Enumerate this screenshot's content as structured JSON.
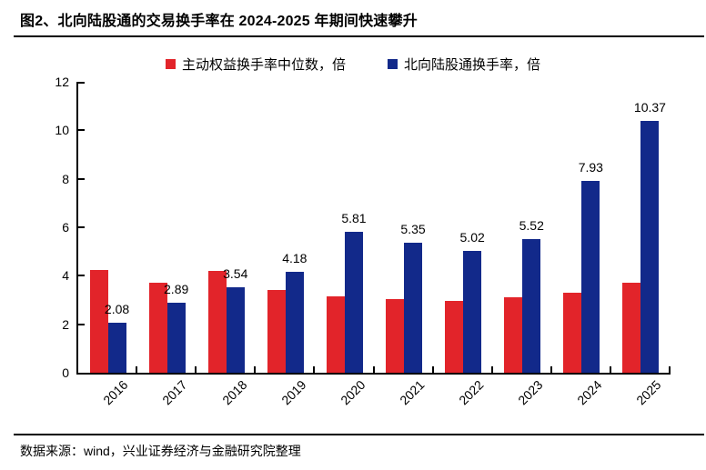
{
  "title": "图2、北向陆股通的交易换手率在 2024-2025 年期间快速攀升",
  "source": "数据来源：wind，兴业证券经济与金融研究院整理",
  "colors": {
    "red": "#e2242a",
    "blue": "#12298a",
    "axis": "#000000",
    "text": "#000000",
    "background": "#ffffff"
  },
  "legend": {
    "items": [
      {
        "label": "主动权益换手率中位数，倍",
        "color_key": "red"
      },
      {
        "label": "北向陆股通换手率，倍",
        "color_key": "blue"
      }
    ]
  },
  "chart_data": {
    "type": "bar",
    "title": "图2、北向陆股通的交易换手率在 2024-2025 年期间快速攀升",
    "categories": [
      "2016",
      "2017",
      "2018",
      "2019",
      "2020",
      "2021",
      "2022",
      "2023",
      "2024",
      "2025"
    ],
    "series": [
      {
        "name": "主动权益换手率中位数，倍",
        "color_key": "red",
        "values": [
          4.25,
          3.7,
          4.2,
          3.4,
          3.15,
          3.05,
          2.95,
          3.1,
          3.3,
          3.7
        ],
        "value_labels_shown": false
      },
      {
        "name": "北向陆股通换手率，倍",
        "color_key": "blue",
        "values": [
          2.08,
          2.89,
          3.54,
          4.18,
          5.81,
          5.35,
          5.02,
          5.52,
          7.93,
          10.37
        ],
        "value_labels_shown": true
      }
    ],
    "xlabel": "",
    "ylabel": "",
    "ylim": [
      0,
      12
    ],
    "ytick_step": 2,
    "yticks": [
      0,
      2,
      4,
      6,
      8,
      10,
      12
    ],
    "grid": false,
    "legend_position": "top",
    "xtick_rotation": 45,
    "value_label_decimals": 2
  }
}
